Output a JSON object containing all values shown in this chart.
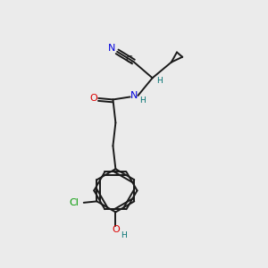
{
  "bg_color": "#ebebeb",
  "bond_color": "#1a1a1a",
  "atom_colors": {
    "C": "#1a1a1a",
    "N": "#0000dd",
    "O": "#dd0000",
    "Cl": "#009900",
    "H": "#007070"
  }
}
